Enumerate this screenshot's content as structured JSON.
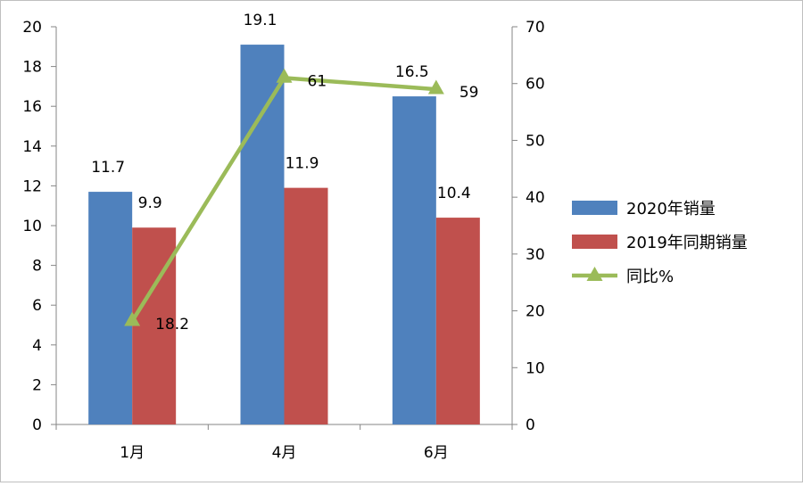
{
  "chart_data": {
    "type": "bar",
    "categories": [
      "1月",
      "4月",
      "6月"
    ],
    "series": [
      {
        "name": "2020年销量",
        "type": "bar",
        "axis": "left",
        "color": "#4F81BD",
        "values": [
          11.7,
          19.1,
          16.5
        ]
      },
      {
        "name": "2019年同期销量",
        "type": "bar",
        "axis": "left",
        "color": "#C0504D",
        "values": [
          9.9,
          11.9,
          10.4
        ]
      },
      {
        "name": "同比%",
        "type": "line",
        "axis": "right",
        "color": "#9BBB59",
        "marker": "triangle",
        "values": [
          18.2,
          61,
          59
        ]
      }
    ],
    "left_axis": {
      "min": 0,
      "max": 20,
      "step": 2,
      "ticks": [
        "0",
        "2",
        "4",
        "6",
        "8",
        "10",
        "12",
        "14",
        "16",
        "18",
        "20"
      ]
    },
    "right_axis": {
      "min": 0,
      "max": 70,
      "step": 10,
      "ticks": [
        "0",
        "10",
        "20",
        "30",
        "40",
        "50",
        "60",
        "70"
      ]
    },
    "grid": false,
    "legend_position": "right"
  }
}
